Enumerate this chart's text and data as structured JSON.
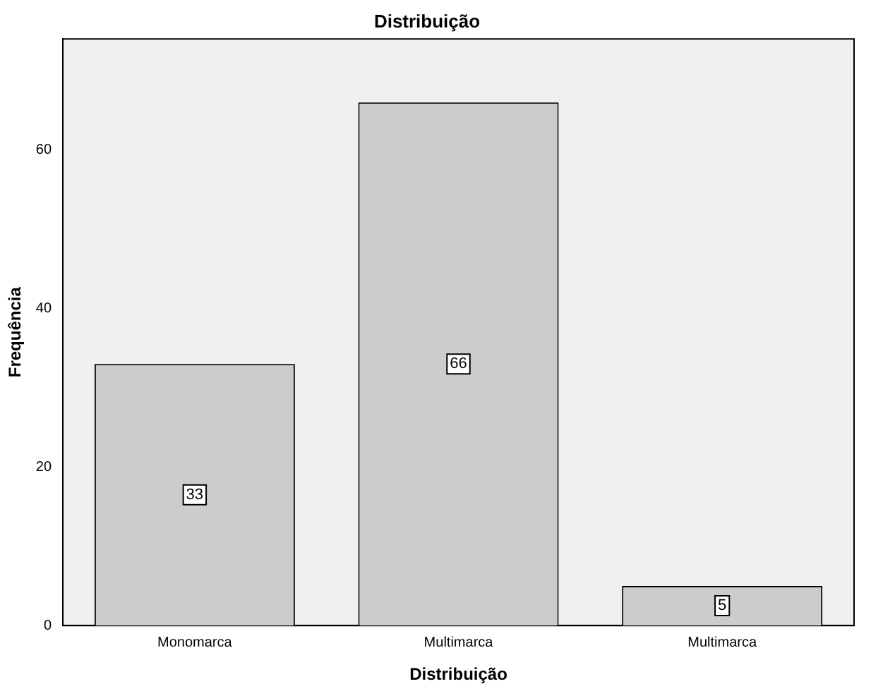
{
  "chart_data": {
    "type": "bar",
    "title": "Distribuição",
    "xlabel": "Distribuição",
    "ylabel": "Frequência",
    "categories": [
      "Monomarca",
      "Multimarca",
      "Multimarca"
    ],
    "values": [
      33,
      66,
      5
    ],
    "color": "#cccccc",
    "ylim": [
      0,
      74
    ],
    "yticks": [
      0,
      20,
      40,
      60
    ],
    "grid": false,
    "data_labels": true,
    "legend": false
  }
}
